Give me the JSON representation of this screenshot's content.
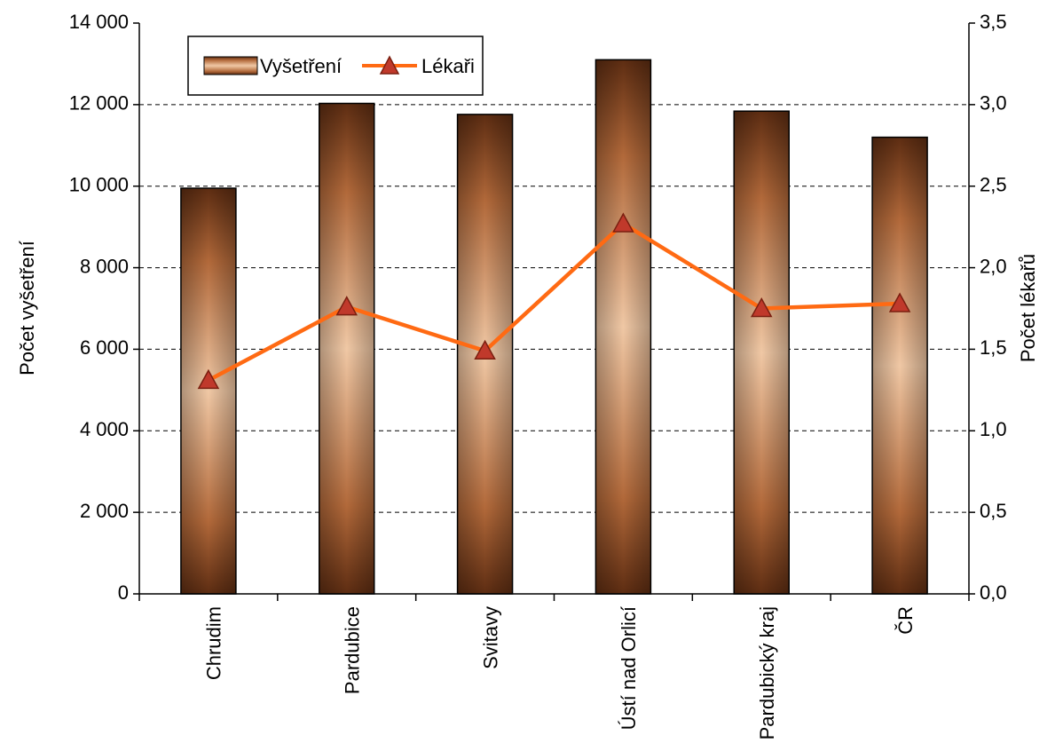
{
  "chart_data": {
    "type": "bar",
    "categories": [
      "Chrudim",
      "Pardubice",
      "Svitavy",
      "Ústí nad Orlicí",
      "Pardubický kraj",
      "ČR"
    ],
    "series": [
      {
        "name": "Vyšetření",
        "type": "bar",
        "axis": "left",
        "values": [
          9950,
          12030,
          11760,
          13100,
          11840,
          11200
        ]
      },
      {
        "name": "Lékaři",
        "type": "line",
        "axis": "right",
        "values": [
          1.31,
          1.76,
          1.49,
          2.27,
          1.75,
          1.78
        ]
      }
    ],
    "ylabel": "Počet vyšetření",
    "y2label": "Počet lékařů",
    "ylim": [
      0,
      14000
    ],
    "y2lim": [
      0,
      3.5
    ],
    "yticks": [
      "0",
      "2 000",
      "4 000",
      "6 000",
      "8 000",
      "10 000",
      "12 000",
      "14 000"
    ],
    "y2ticks": [
      "0,0",
      "0,5",
      "1,0",
      "1,5",
      "2,0",
      "2,5",
      "3,0",
      "3,5"
    ],
    "grid": true,
    "legend": "top-left",
    "colors": {
      "bar_dark": "#5e2d12",
      "bar_mid": "#b2693a",
      "bar_light": "#f0c8a5",
      "line": "#ff6a13",
      "marker_fill": "#c0392b",
      "marker_stroke": "#7a1f10"
    }
  }
}
